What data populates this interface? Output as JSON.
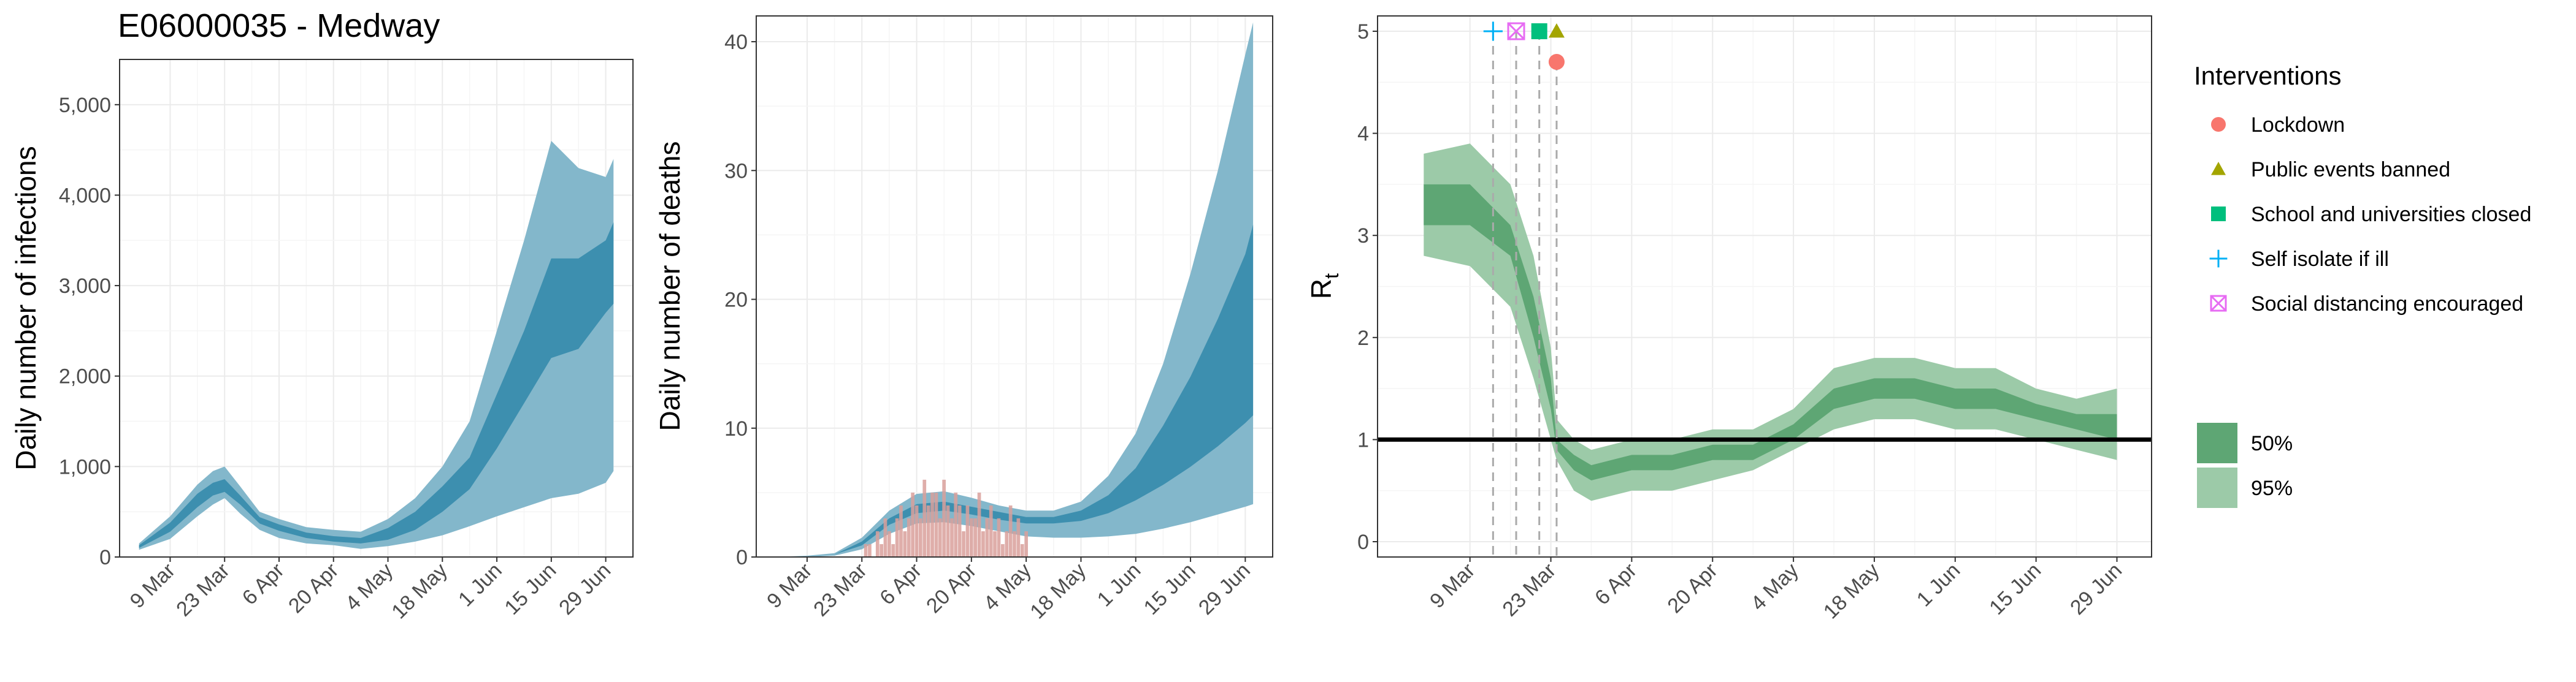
{
  "title": "E06000035 - Medway",
  "x_tick_labels": [
    "9 Mar",
    "23 Mar",
    "6 Apr",
    "20 Apr",
    "4 May",
    "18 May",
    "1 Jun",
    "15 Jun",
    "29 Jun"
  ],
  "colors": {
    "infections_95": "#83b7cb",
    "infections_50": "#3d8faf",
    "deaths_95": "#83b7cb",
    "deaths_50": "#3d8faf",
    "deaths_observed": "#d9a09b",
    "rt_95": "#9ccaa8",
    "rt_50": "#5ea674",
    "lockdown": "#f8766d",
    "public_events": "#a3a500",
    "schools": "#00bf7d",
    "self_isolate": "#00b0f6",
    "social_distancing": "#e76bf3"
  },
  "legend": {
    "interventions_title": "Interventions",
    "interventions": [
      {
        "label": "Lockdown",
        "icon": "circle-icon"
      },
      {
        "label": "Public events banned",
        "icon": "triangle-icon"
      },
      {
        "label": "School and universities closed",
        "icon": "square-icon"
      },
      {
        "label": "Self isolate if ill",
        "icon": "plus-icon"
      },
      {
        "label": "Social distancing encouraged",
        "icon": "boxed-x-icon"
      }
    ],
    "bands": [
      {
        "label": "50%"
      },
      {
        "label": "95%"
      }
    ]
  },
  "chart_data": [
    {
      "type": "area",
      "ylabel": "Daily number of infections",
      "ylim": [
        0,
        5500
      ],
      "yticks": [
        0,
        1000,
        2000,
        3000,
        4000,
        5000
      ],
      "ytick_labels": [
        "0",
        "1,000",
        "2,000",
        "3,000",
        "4,000",
        "5,000"
      ],
      "x_dates": [
        "Mar 1",
        "Mar 9",
        "Mar 16",
        "Mar 20",
        "Mar 23",
        "Mar 27",
        "Apr 1",
        "Apr 6",
        "Apr 13",
        "Apr 20",
        "Apr 27",
        "May 4",
        "May 11",
        "May 18",
        "May 25",
        "Jun 1",
        "Jun 8",
        "Jun 15",
        "Jun 22",
        "Jun 29",
        "Jul 1"
      ],
      "x_days": [
        0,
        8,
        15,
        19,
        22,
        26,
        31,
        36,
        43,
        50,
        57,
        64,
        71,
        78,
        85,
        92,
        99,
        106,
        113,
        120,
        122
      ],
      "series": [
        {
          "name": "95%",
          "lower": [
            80,
            200,
            450,
            580,
            650,
            480,
            300,
            210,
            150,
            130,
            90,
            120,
            170,
            240,
            340,
            450,
            550,
            650,
            700,
            820,
            950
          ],
          "upper": [
            150,
            450,
            800,
            950,
            1000,
            780,
            500,
            420,
            330,
            300,
            280,
            420,
            650,
            1000,
            1500,
            2500,
            3500,
            4600,
            4300,
            4200,
            4400
          ]
        },
        {
          "name": "50%",
          "lower": [
            100,
            280,
            550,
            680,
            720,
            580,
            370,
            290,
            210,
            170,
            150,
            190,
            300,
            500,
            750,
            1200,
            1700,
            2200,
            2300,
            2700,
            2800
          ],
          "upper": [
            130,
            380,
            700,
            820,
            860,
            680,
            440,
            360,
            270,
            230,
            210,
            320,
            500,
            780,
            1100,
            1800,
            2500,
            3300,
            3300,
            3500,
            3700
          ]
        }
      ]
    },
    {
      "type": "area",
      "ylabel": "Daily number of deaths",
      "ylim": [
        0,
        42
      ],
      "yticks": [
        0,
        10,
        20,
        30,
        40
      ],
      "ytick_labels": [
        "0",
        "10",
        "20",
        "30",
        "40"
      ],
      "x_days": [
        0,
        8,
        15,
        22,
        29,
        36,
        43,
        50,
        57,
        64,
        71,
        78,
        85,
        92,
        99,
        106,
        113,
        120,
        122
      ],
      "series": [
        {
          "name": "95%",
          "lower": [
            0,
            0,
            0.1,
            0.6,
            1.8,
            2.6,
            2.7,
            2.4,
            2.0,
            1.6,
            1.5,
            1.5,
            1.6,
            1.8,
            2.2,
            2.7,
            3.3,
            3.9,
            4.1
          ],
          "upper": [
            0,
            0.1,
            0.3,
            1.5,
            3.6,
            4.9,
            5.1,
            4.6,
            4.0,
            3.6,
            3.6,
            4.3,
            6.3,
            9.6,
            15,
            22,
            30,
            39,
            41.5
          ]
        },
        {
          "name": "50%",
          "lower": [
            0,
            0,
            0.2,
            0.9,
            2.5,
            3.4,
            3.6,
            3.3,
            2.9,
            2.6,
            2.6,
            2.8,
            3.4,
            4.4,
            5.6,
            7.0,
            8.6,
            10.4,
            11
          ],
          "upper": [
            0,
            0,
            0.2,
            1.2,
            3.0,
            4.1,
            4.3,
            3.9,
            3.5,
            3.1,
            3.1,
            3.6,
            4.8,
            6.9,
            10.2,
            14,
            18.5,
            23.5,
            25.8
          ]
        }
      ],
      "observed_days": [
        22,
        23,
        24,
        25,
        26,
        27,
        28,
        29,
        30,
        31,
        32,
        33,
        34,
        35,
        36,
        37,
        38,
        39,
        40,
        41,
        42,
        43,
        44,
        45,
        46,
        47,
        48,
        49,
        50,
        51,
        52,
        53,
        54,
        55,
        56,
        57,
        58,
        59,
        60,
        61,
        62,
        63,
        64
      ],
      "observed": [
        0,
        1,
        1,
        0,
        2,
        1,
        3,
        2,
        1,
        3,
        4,
        2,
        3,
        5,
        4,
        3,
        6,
        4,
        5,
        5,
        3,
        6,
        4,
        3,
        5,
        4,
        2,
        4,
        3,
        3,
        5,
        2,
        3,
        4,
        2,
        3,
        1,
        2,
        4,
        2,
        3,
        1,
        2
      ]
    },
    {
      "type": "line",
      "ylabel": "R",
      "ylabel_subscript": "t",
      "ylim": [
        0,
        5
      ],
      "yticks": [
        0,
        1,
        2,
        3,
        4,
        5
      ],
      "ytick_labels": [
        "0",
        "1",
        "2",
        "3",
        "4",
        "5"
      ],
      "reference_line": 1,
      "x_days": [
        0,
        8,
        15,
        19,
        22,
        23,
        26,
        29,
        36,
        43,
        50,
        57,
        64,
        71,
        78,
        85,
        92,
        99,
        106,
        113,
        120
      ],
      "series": [
        {
          "name": "95%",
          "lower": [
            2.8,
            2.7,
            2.3,
            1.6,
            1.0,
            0.8,
            0.5,
            0.4,
            0.5,
            0.5,
            0.6,
            0.7,
            0.9,
            1.1,
            1.2,
            1.2,
            1.1,
            1.1,
            1.0,
            0.9,
            0.8
          ],
          "upper": [
            3.8,
            3.9,
            3.5,
            2.8,
            1.9,
            1.2,
            1.0,
            0.9,
            1.0,
            1.0,
            1.1,
            1.1,
            1.3,
            1.7,
            1.8,
            1.8,
            1.7,
            1.7,
            1.5,
            1.4,
            1.5
          ]
        },
        {
          "name": "50%",
          "lower": [
            3.1,
            3.1,
            2.8,
            2.0,
            1.3,
            0.9,
            0.7,
            0.6,
            0.7,
            0.7,
            0.8,
            0.8,
            1.0,
            1.3,
            1.4,
            1.4,
            1.3,
            1.3,
            1.2,
            1.1,
            1.0
          ],
          "upper": [
            3.5,
            3.5,
            3.1,
            2.4,
            1.6,
            1.0,
            0.85,
            0.75,
            0.85,
            0.85,
            0.95,
            0.95,
            1.15,
            1.5,
            1.6,
            1.6,
            1.5,
            1.5,
            1.35,
            1.25,
            1.25
          ]
        }
      ],
      "interventions": [
        {
          "name": "Lockdown",
          "day": 23,
          "y": 4.7
        },
        {
          "name": "Public events banned",
          "day": 23,
          "y": 5.0
        },
        {
          "name": "School and universities closed",
          "day": 20,
          "y": 5.0
        },
        {
          "name": "Self isolate if ill",
          "day": 12,
          "y": 5.0
        },
        {
          "name": "Social distancing encouraged",
          "day": 16,
          "y": 5.0
        }
      ]
    }
  ]
}
